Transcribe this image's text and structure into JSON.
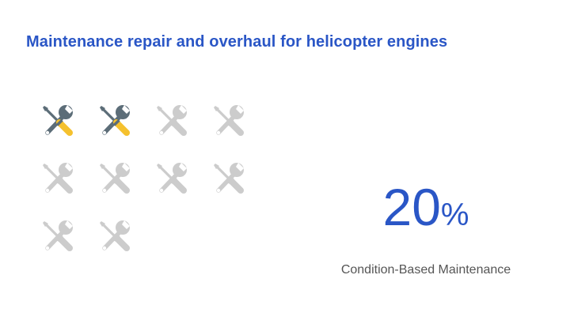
{
  "title": "Maintenance repair and overhaul for helicopter engines",
  "progress": {
    "icon_name": "repair-tools-icon",
    "total": 10,
    "filled": 2,
    "colors": {
      "wrench_filled": "#5c6d78",
      "screwdriver_filled": "#f5c12e",
      "handle_filled": "#5c6d78",
      "empty": "#cccccc"
    }
  },
  "stat": {
    "value": "20",
    "unit": "%",
    "caption": "Condition-Based Maintenance"
  }
}
